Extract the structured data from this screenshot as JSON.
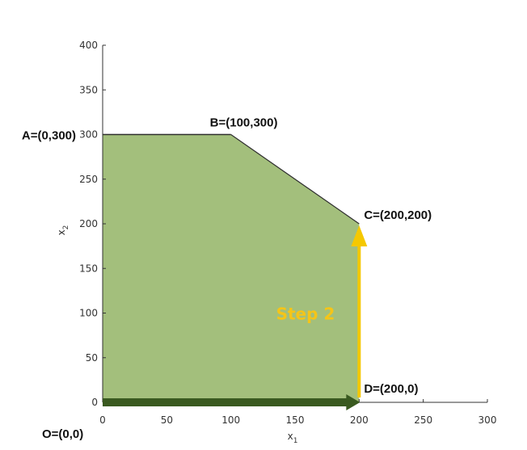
{
  "chart_data": {
    "type": "area",
    "xlabel": "x",
    "xlabel_sub": "1",
    "ylabel": "x",
    "ylabel_sub": "2",
    "xlim": [
      0,
      300
    ],
    "ylim": [
      0,
      400
    ],
    "xticks": [
      0,
      50,
      100,
      150,
      200,
      250,
      300
    ],
    "yticks": [
      0,
      50,
      100,
      150,
      200,
      250,
      300,
      350,
      400
    ],
    "grid": false,
    "region": {
      "vertices": [
        [
          0,
          0
        ],
        [
          0,
          300
        ],
        [
          100,
          300
        ],
        [
          200,
          200
        ],
        [
          200,
          0
        ]
      ],
      "color": "#a3bf7c",
      "edge_color": "#4a4a4a"
    },
    "points": [
      {
        "name": "O",
        "x": 0,
        "y": 0,
        "label": "O=(0,0)"
      },
      {
        "name": "A",
        "x": 0,
        "y": 300,
        "label": "A=(0,300)"
      },
      {
        "name": "B",
        "x": 100,
        "y": 300,
        "label": "B=(100,300)"
      },
      {
        "name": "C",
        "x": 200,
        "y": 200,
        "label": "C=(200,200)"
      },
      {
        "name": "D",
        "x": 200,
        "y": 0,
        "label": "D=(200,0)"
      }
    ],
    "arrows": [
      {
        "from": [
          0,
          0
        ],
        "to": [
          200,
          0
        ],
        "color": "#3a5a20"
      },
      {
        "from": [
          200,
          0
        ],
        "to": [
          200,
          200
        ],
        "color": "#f5c800"
      }
    ],
    "annotations": [
      {
        "text": "Step 2",
        "color": "#f5c518"
      }
    ]
  }
}
